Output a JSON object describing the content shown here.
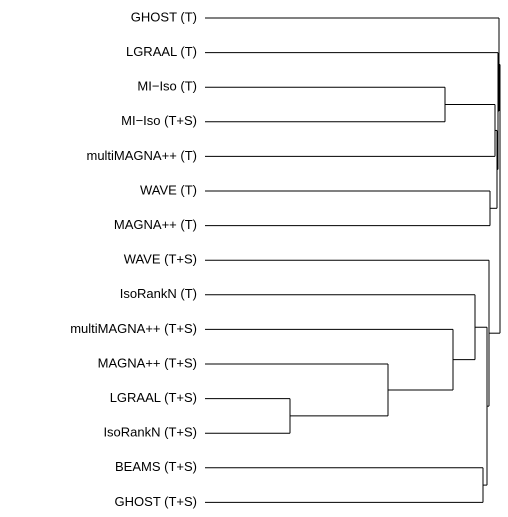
{
  "leaves": [
    "GHOST (T)",
    "LGRAAL (T)",
    "MI−Iso (T)",
    "MI−Iso (T+S)",
    "multiMAGNA++ (T)",
    "WAVE (T)",
    "MAGNA++ (T)",
    "WAVE (T+S)",
    "IsoRankN (T)",
    "multiMAGNA++ (T+S)",
    "MAGNA++ (T+S)",
    "LGRAAL (T+S)",
    "IsoRankN (T+S)",
    "BEAMS (T+S)",
    "GHOST (T+S)"
  ]
}
